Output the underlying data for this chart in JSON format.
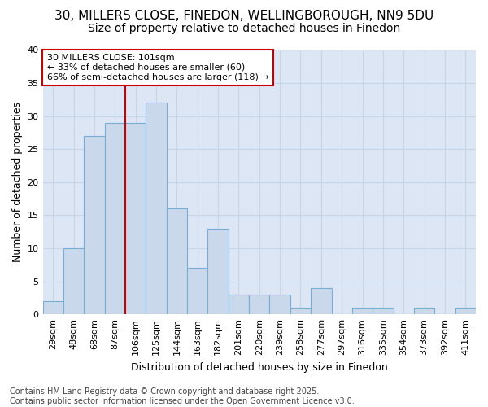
{
  "title1": "30, MILLERS CLOSE, FINEDON, WELLINGBOROUGH, NN9 5DU",
  "title2": "Size of property relative to detached houses in Finedon",
  "xlabel": "Distribution of detached houses by size in Finedon",
  "ylabel": "Number of detached properties",
  "categories": [
    "29sqm",
    "48sqm",
    "68sqm",
    "87sqm",
    "106sqm",
    "125sqm",
    "144sqm",
    "163sqm",
    "182sqm",
    "201sqm",
    "220sqm",
    "239sqm",
    "258sqm",
    "277sqm",
    "297sqm",
    "316sqm",
    "335sqm",
    "354sqm",
    "373sqm",
    "392sqm",
    "411sqm"
  ],
  "values": [
    2,
    10,
    27,
    29,
    29,
    32,
    16,
    7,
    13,
    3,
    3,
    3,
    1,
    4,
    0,
    1,
    1,
    0,
    1,
    0,
    1
  ],
  "bar_color": "#c9d9eb",
  "bar_edge_color": "#7aadd4",
  "bar_width": 1.0,
  "vline_x_idx": 4,
  "vline_color": "#cc0000",
  "annotation_text": "30 MILLERS CLOSE: 101sqm\n← 33% of detached houses are smaller (60)\n66% of semi-detached houses are larger (118) →",
  "annotation_box_color": "white",
  "annotation_box_edge": "#cc0000",
  "ylim": [
    0,
    40
  ],
  "yticks": [
    0,
    5,
    10,
    15,
    20,
    25,
    30,
    35,
    40
  ],
  "grid_color": "#c8d4e8",
  "background_color": "#dce6f5",
  "footer": "Contains HM Land Registry data © Crown copyright and database right 2025.\nContains public sector information licensed under the Open Government Licence v3.0.",
  "title1_fontsize": 11,
  "title2_fontsize": 10,
  "axis_label_fontsize": 9,
  "tick_fontsize": 8,
  "annotation_fontsize": 8,
  "footer_fontsize": 7
}
